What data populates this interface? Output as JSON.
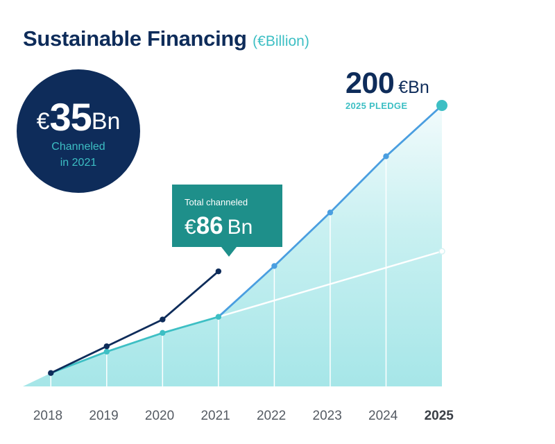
{
  "title": "Sustainable Financing",
  "subtitle": "(€Billion)",
  "badge": {
    "currency": "€",
    "value": "35",
    "unit": "Bn",
    "caption_line1": "Channeled",
    "caption_line2": "in 2021"
  },
  "pledge": {
    "value": "200",
    "unit": "€Bn",
    "label": "2025 PLEDGE"
  },
  "callout": {
    "label": "Total channeled",
    "currency": "€",
    "value": "86",
    "unit": "Bn"
  },
  "colors": {
    "navy": "#0e2c5a",
    "teal": "#3dbfc4",
    "blue": "#4a9ee0",
    "callout": "#1e8f8a",
    "area": "#aee8ea"
  },
  "chart_data": {
    "type": "line",
    "x_labels": [
      "2018",
      "2019",
      "2020",
      "2021",
      "2022",
      "2023",
      "2024",
      "2025"
    ],
    "x_label_highlight": "2025",
    "ylim": [
      0,
      200
    ],
    "series": [
      {
        "name": "Total channeled",
        "color": "#0e2c5a",
        "points": [
          [
            2018.5,
            10
          ],
          [
            2019.5,
            30
          ],
          [
            2020.5,
            50
          ],
          [
            2021.5,
            86
          ]
        ]
      },
      {
        "name": "",
        "color": "#3dbfc4",
        "points": [
          [
            2018.5,
            10
          ],
          [
            2019.5,
            26
          ],
          [
            2020.5,
            40
          ],
          [
            2021.5,
            52
          ]
        ]
      },
      {
        "name": "2025 PLEDGE",
        "color": "#4a9ee0",
        "points": [
          [
            2021.5,
            52
          ],
          [
            2022.5,
            90
          ],
          [
            2023.5,
            130
          ],
          [
            2024.5,
            172
          ],
          [
            2025.5,
            210
          ]
        ]
      },
      {
        "name": "",
        "color": "#ffffff",
        "points": [
          [
            2021.5,
            52
          ],
          [
            2025.5,
            101
          ]
        ]
      }
    ],
    "area": {
      "points": [
        [
          2018,
          0
        ],
        [
          2018.5,
          10
        ],
        [
          2019.5,
          26
        ],
        [
          2020.5,
          40
        ],
        [
          2021.5,
          52
        ],
        [
          2022.5,
          90
        ],
        [
          2023.5,
          130
        ],
        [
          2024.5,
          172
        ],
        [
          2025.5,
          210
        ]
      ]
    }
  }
}
